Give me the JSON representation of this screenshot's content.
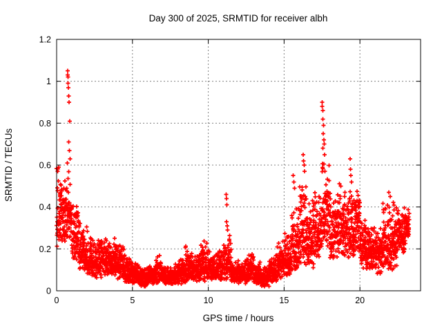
{
  "chart_data": {
    "type": "scatter",
    "title": "Day 300 of 2025, SRMTID for receiver albh",
    "xlabel": "GPS time / hours",
    "ylabel": "SRMTID / TECUs",
    "xlim": [
      0,
      24
    ],
    "ylim": [
      0,
      1.2
    ],
    "xticks": [
      0,
      5,
      10,
      15,
      20
    ],
    "xticklabels": [
      "0",
      "5",
      "10",
      "15",
      "20"
    ],
    "yticks": [
      0,
      0.2,
      0.4,
      0.6,
      0.8,
      1.0,
      1.2
    ],
    "yticklabels": [
      "0",
      "0.2",
      "0.4",
      "0.6",
      "0.8",
      "1",
      "1.2"
    ],
    "grid": true,
    "grid_style": "dotted",
    "grid_color": "#808080",
    "legend": null,
    "marker": "plus",
    "marker_color": "#ff0000",
    "frame_color": "#000000",
    "x_data_end": 23.25,
    "envelope_bins": [
      [
        0.0,
        0.5,
        0.2,
        0.62
      ],
      [
        0.5,
        1.0,
        0.22,
        0.58
      ],
      [
        1.0,
        1.5,
        0.14,
        0.45
      ],
      [
        1.5,
        2.0,
        0.1,
        0.34
      ],
      [
        2.0,
        2.5,
        0.07,
        0.3
      ],
      [
        2.5,
        3.0,
        0.06,
        0.26
      ],
      [
        3.0,
        3.5,
        0.07,
        0.27
      ],
      [
        3.5,
        4.0,
        0.07,
        0.26
      ],
      [
        4.0,
        4.5,
        0.05,
        0.23
      ],
      [
        4.5,
        5.0,
        0.04,
        0.17
      ],
      [
        5.0,
        5.5,
        0.03,
        0.14
      ],
      [
        5.5,
        6.0,
        0.02,
        0.12
      ],
      [
        6.0,
        6.5,
        0.03,
        0.13
      ],
      [
        6.5,
        7.0,
        0.03,
        0.18
      ],
      [
        7.0,
        7.5,
        0.03,
        0.12
      ],
      [
        7.5,
        8.0,
        0.03,
        0.13
      ],
      [
        8.0,
        8.5,
        0.03,
        0.16
      ],
      [
        8.5,
        9.0,
        0.04,
        0.24
      ],
      [
        9.0,
        9.5,
        0.04,
        0.2
      ],
      [
        9.5,
        10.0,
        0.04,
        0.25
      ],
      [
        10.0,
        10.5,
        0.04,
        0.19
      ],
      [
        10.5,
        11.0,
        0.05,
        0.21
      ],
      [
        11.0,
        11.5,
        0.05,
        0.28
      ],
      [
        11.5,
        12.0,
        0.04,
        0.16
      ],
      [
        12.0,
        12.5,
        0.03,
        0.15
      ],
      [
        12.5,
        13.0,
        0.04,
        0.2
      ],
      [
        13.0,
        13.5,
        0.03,
        0.14
      ],
      [
        13.5,
        14.0,
        0.02,
        0.12
      ],
      [
        14.0,
        14.5,
        0.04,
        0.18
      ],
      [
        14.5,
        15.0,
        0.05,
        0.25
      ],
      [
        15.0,
        15.5,
        0.06,
        0.3
      ],
      [
        15.5,
        16.0,
        0.08,
        0.42
      ],
      [
        16.0,
        16.5,
        0.12,
        0.55
      ],
      [
        16.5,
        17.0,
        0.1,
        0.45
      ],
      [
        17.0,
        17.5,
        0.15,
        0.52
      ],
      [
        17.5,
        18.0,
        0.2,
        0.68
      ],
      [
        18.0,
        18.5,
        0.15,
        0.5
      ],
      [
        18.5,
        19.0,
        0.15,
        0.55
      ],
      [
        19.0,
        19.5,
        0.15,
        0.5
      ],
      [
        19.5,
        20.0,
        0.15,
        0.52
      ],
      [
        20.0,
        20.5,
        0.1,
        0.38
      ],
      [
        20.5,
        21.0,
        0.1,
        0.35
      ],
      [
        21.0,
        21.5,
        0.08,
        0.35
      ],
      [
        21.5,
        22.0,
        0.1,
        0.43
      ],
      [
        22.0,
        22.5,
        0.1,
        0.45
      ],
      [
        22.5,
        23.0,
        0.18,
        0.42
      ],
      [
        23.0,
        23.25,
        0.25,
        0.4
      ]
    ],
    "peak_points": [
      [
        0.7,
        0.61
      ],
      [
        0.72,
        1.05
      ],
      [
        0.73,
        1.03
      ],
      [
        0.75,
        1.02
      ],
      [
        0.76,
        0.99
      ],
      [
        0.78,
        0.97
      ],
      [
        0.8,
        0.93
      ],
      [
        0.82,
        0.9
      ],
      [
        0.86,
        0.81
      ],
      [
        0.8,
        0.71
      ],
      [
        0.84,
        0.67
      ],
      [
        0.88,
        0.63
      ],
      [
        11.18,
        0.46
      ],
      [
        11.2,
        0.44
      ],
      [
        11.22,
        0.41
      ],
      [
        11.2,
        0.33
      ],
      [
        11.24,
        0.31
      ],
      [
        11.26,
        0.29
      ],
      [
        15.6,
        0.55
      ],
      [
        15.65,
        0.52
      ],
      [
        15.7,
        0.49
      ],
      [
        16.25,
        0.65
      ],
      [
        16.28,
        0.62
      ],
      [
        16.32,
        0.6
      ],
      [
        16.35,
        0.57
      ],
      [
        17.5,
        0.9
      ],
      [
        17.52,
        0.88
      ],
      [
        17.55,
        0.86
      ],
      [
        17.56,
        0.82
      ],
      [
        17.6,
        0.79
      ],
      [
        17.58,
        0.75
      ],
      [
        17.62,
        0.72
      ],
      [
        17.64,
        0.7
      ],
      [
        17.55,
        0.68
      ],
      [
        17.68,
        0.65
      ],
      [
        19.35,
        0.63
      ],
      [
        19.38,
        0.58
      ],
      [
        19.4,
        0.55
      ],
      [
        19.44,
        0.52
      ],
      [
        21.9,
        0.47
      ],
      [
        22.0,
        0.45
      ]
    ]
  }
}
